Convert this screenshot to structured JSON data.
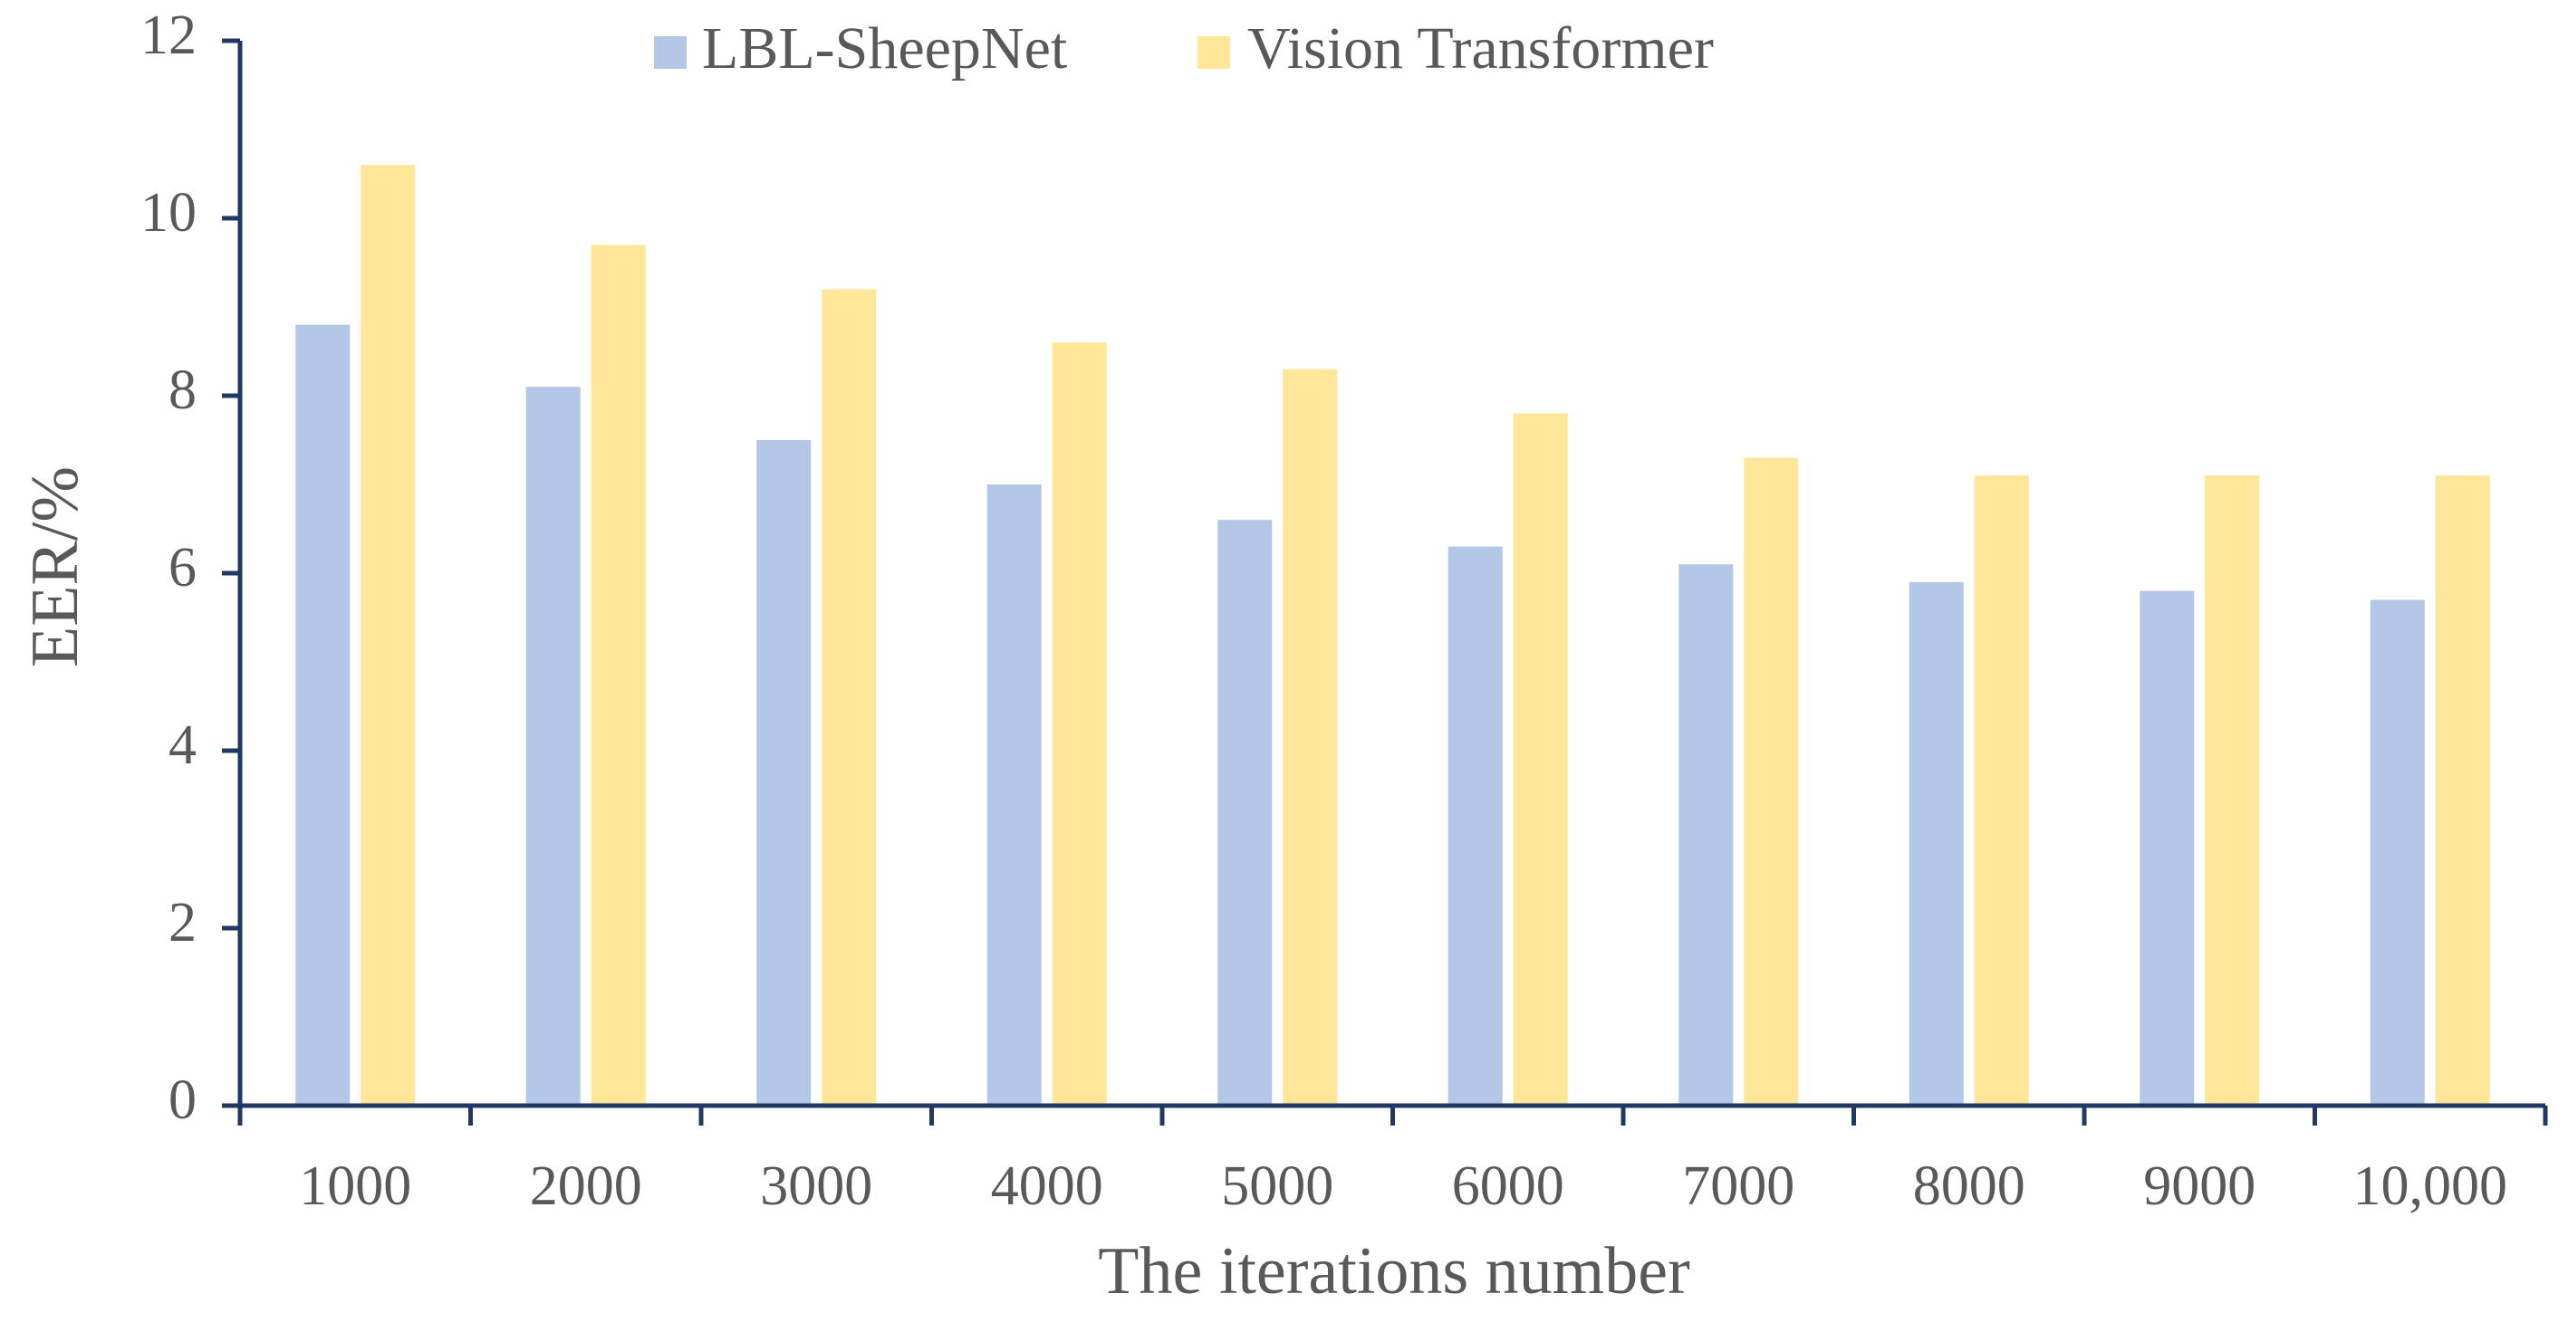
{
  "chart_data": {
    "type": "bar",
    "title": "",
    "xlabel": "The iterations number",
    "ylabel": "EER/%",
    "ylim": [
      0,
      12
    ],
    "yticks": [
      0,
      2,
      4,
      6,
      8,
      10,
      12
    ],
    "grid": false,
    "legend_position": "top-center",
    "categories": [
      "1000",
      "2000",
      "3000",
      "4000",
      "5000",
      "6000",
      "7000",
      "8000",
      "9000",
      "10,000"
    ],
    "series": [
      {
        "name": "LBL-SheepNet",
        "color": "#b4c7e7",
        "values": [
          8.8,
          8.1,
          7.5,
          7.0,
          6.6,
          6.3,
          6.1,
          5.9,
          5.8,
          5.7
        ]
      },
      {
        "name": "Vision Transformer",
        "color": "#ffe699",
        "values": [
          10.6,
          9.7,
          9.2,
          8.6,
          8.3,
          7.8,
          7.3,
          7.1,
          7.1,
          7.1
        ]
      }
    ],
    "axis_color": "#1f3864"
  }
}
